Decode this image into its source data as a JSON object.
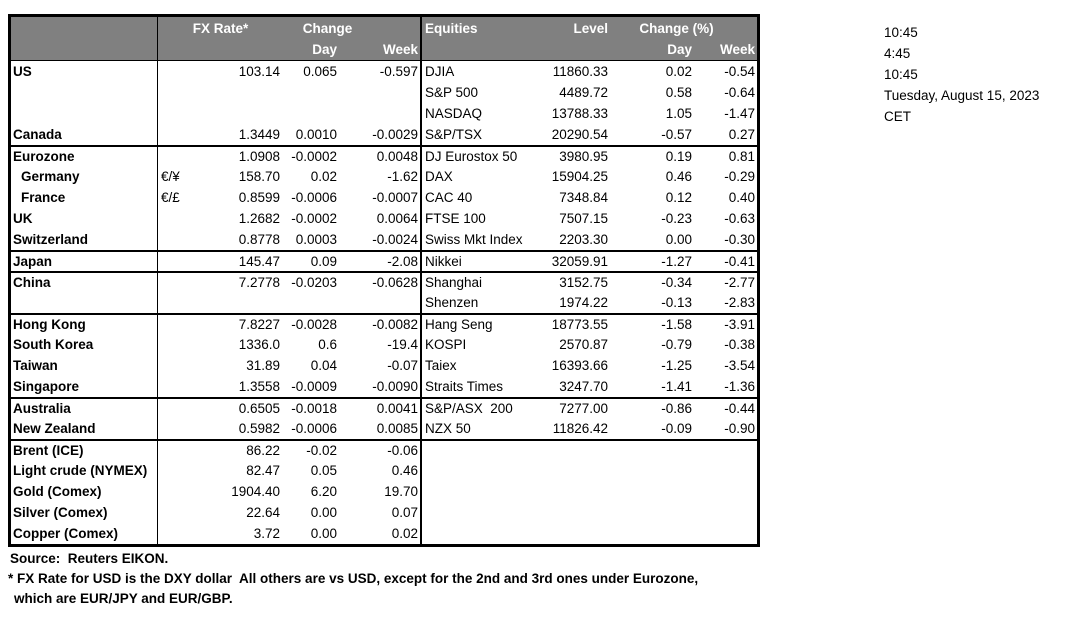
{
  "colors": {
    "header_bg": "#808080",
    "header_text": "#ffffff",
    "border": "#000000",
    "background": "#ffffff"
  },
  "table": {
    "header": {
      "fx_rate": "FX Rate*",
      "fx_change": "Change",
      "fx_day": "Day",
      "fx_week": "Week",
      "equities": "Equities",
      "level": "Level",
      "eq_change": "Change (%)",
      "eq_day": "Day",
      "eq_week": "Week"
    },
    "rows": [
      {
        "country": "US",
        "pair": "",
        "fx": "103.14",
        "fx_day": "0.065",
        "fx_week": "-0.597",
        "equity": "DJIA",
        "level": "11860.33",
        "eq_day": "0.02",
        "eq_week": "-0.54"
      },
      {
        "country": "",
        "pair": "",
        "fx": "",
        "fx_day": "",
        "fx_week": "",
        "equity": "S&P 500",
        "level": "4489.72",
        "eq_day": "0.58",
        "eq_week": "-0.64"
      },
      {
        "country": "",
        "pair": "",
        "fx": "",
        "fx_day": "",
        "fx_week": "",
        "equity": "NASDAQ",
        "level": "13788.33",
        "eq_day": "1.05",
        "eq_week": "-1.47"
      },
      {
        "country": "Canada",
        "pair": "",
        "fx": "1.3449",
        "fx_day": "0.0010",
        "fx_week": "-0.0029",
        "equity": "S&P/TSX",
        "level": "20290.54",
        "eq_day": "-0.57",
        "eq_week": "0.27"
      },
      {
        "country": "Eurozone",
        "section_start": true,
        "pair": "",
        "fx": "1.0908",
        "fx_day": "-0.0002",
        "fx_week": "0.0048",
        "equity": "DJ Eurostox 50",
        "level": "3980.95",
        "eq_day": "0.19",
        "eq_week": "0.81"
      },
      {
        "country": "Germany",
        "indent": true,
        "pair": "€/¥",
        "fx": "158.70",
        "fx_day": "0.02",
        "fx_week": "-1.62",
        "equity": "DAX",
        "level": "15904.25",
        "eq_day": "0.46",
        "eq_week": "-0.29"
      },
      {
        "country": "France",
        "indent": true,
        "pair": "€/£",
        "fx": "0.8599",
        "fx_day": "-0.0006",
        "fx_week": "-0.0007",
        "equity": "CAC 40",
        "level": "7348.84",
        "eq_day": "0.12",
        "eq_week": "0.40"
      },
      {
        "country": "UK",
        "pair": "",
        "fx": "1.2682",
        "fx_day": "-0.0002",
        "fx_week": "0.0064",
        "equity": "FTSE 100",
        "level": "7507.15",
        "eq_day": "-0.23",
        "eq_week": "-0.63"
      },
      {
        "country": "Switzerland",
        "pair": "",
        "fx": "0.8778",
        "fx_day": "0.0003",
        "fx_week": "-0.0024",
        "equity": "Swiss Mkt Index",
        "level": "2203.30",
        "eq_day": "0.00",
        "eq_week": "-0.30"
      },
      {
        "country": "Japan",
        "section_start": true,
        "pair": "",
        "fx": "145.47",
        "fx_day": "0.09",
        "fx_week": "-2.08",
        "equity": "Nikkei",
        "level": "32059.91",
        "eq_day": "-1.27",
        "eq_week": "-0.41"
      },
      {
        "country": "China",
        "section_start": true,
        "pair": "",
        "fx": "7.2778",
        "fx_day": "-0.0203",
        "fx_week": "-0.0628",
        "equity": "Shanghai",
        "level": "3152.75",
        "eq_day": "-0.34",
        "eq_week": "-2.77"
      },
      {
        "country": "",
        "pair": "",
        "fx": "",
        "fx_day": "",
        "fx_week": "",
        "equity": "Shenzen",
        "level": "1974.22",
        "eq_day": "-0.13",
        "eq_week": "-2.83"
      },
      {
        "country": "Hong Kong",
        "section_start": true,
        "pair": "",
        "fx": "7.8227",
        "fx_day": "-0.0028",
        "fx_week": "-0.0082",
        "equity": "Hang Seng",
        "level": "18773.55",
        "eq_day": "-1.58",
        "eq_week": "-3.91"
      },
      {
        "country": "South Korea",
        "pair": "",
        "fx": "1336.0",
        "fx_day": "0.6",
        "fx_week": "-19.4",
        "equity": "KOSPI",
        "level": "2570.87",
        "eq_day": "-0.79",
        "eq_week": "-0.38"
      },
      {
        "country": "Taiwan",
        "pair": "",
        "fx": "31.89",
        "fx_day": "0.04",
        "fx_week": "-0.07",
        "equity": "Taiex",
        "level": "16393.66",
        "eq_day": "-1.25",
        "eq_week": "-3.54"
      },
      {
        "country": "Singapore",
        "pair": "",
        "fx": "1.3558",
        "fx_day": "-0.0009",
        "fx_week": "-0.0090",
        "equity": "Straits Times",
        "level": "3247.70",
        "eq_day": "-1.41",
        "eq_week": "-1.36"
      },
      {
        "country": "Australia",
        "section_start": true,
        "pair": "",
        "fx": "0.6505",
        "fx_day": "-0.0018",
        "fx_week": "0.0041",
        "equity": "S&P/ASX  200",
        "level": "7277.00",
        "eq_day": "-0.86",
        "eq_week": "-0.44"
      },
      {
        "country": "New Zealand",
        "pair": "",
        "fx": "0.5982",
        "fx_day": "-0.0006",
        "fx_week": "0.0085",
        "equity": "NZX 50",
        "level": "11826.42",
        "eq_day": "-0.09",
        "eq_week": "-0.90"
      },
      {
        "country": "Brent (ICE)",
        "section_start": true,
        "pair": "",
        "fx": "86.22",
        "fx_day": "-0.02",
        "fx_week": "-0.06",
        "equity": "",
        "level": "",
        "eq_day": "",
        "eq_week": ""
      },
      {
        "country": "Light crude (NYMEX)",
        "pair": "",
        "fx": "82.47",
        "fx_day": "0.05",
        "fx_week": "0.46",
        "equity": "",
        "level": "",
        "eq_day": "",
        "eq_week": ""
      },
      {
        "country": "Gold (Comex)",
        "pair": "",
        "fx": "1904.40",
        "fx_day": "6.20",
        "fx_week": "19.70",
        "equity": "",
        "level": "",
        "eq_day": "",
        "eq_week": ""
      },
      {
        "country": "Silver (Comex)",
        "pair": "",
        "fx": "22.64",
        "fx_day": "0.00",
        "fx_week": "0.07",
        "equity": "",
        "level": "",
        "eq_day": "",
        "eq_week": ""
      },
      {
        "country": "Copper (Comex)",
        "pair": "",
        "fx": "3.72",
        "fx_day": "0.00",
        "fx_week": "0.02",
        "equity": "",
        "level": "",
        "eq_day": "",
        "eq_week": ""
      }
    ]
  },
  "footer": {
    "source": "Source:  Reuters EIKON.",
    "note1": "* FX Rate for USD is the DXY dollar  All others are vs USD, except for the 2nd and 3rd ones under Eurozone,",
    "note2": "which are EUR/JPY and EUR/GBP."
  },
  "timestamps": {
    "lines": [
      "10:45",
      "4:45",
      "10:45",
      "Tuesday, August 15, 2023",
      "CET"
    ]
  }
}
